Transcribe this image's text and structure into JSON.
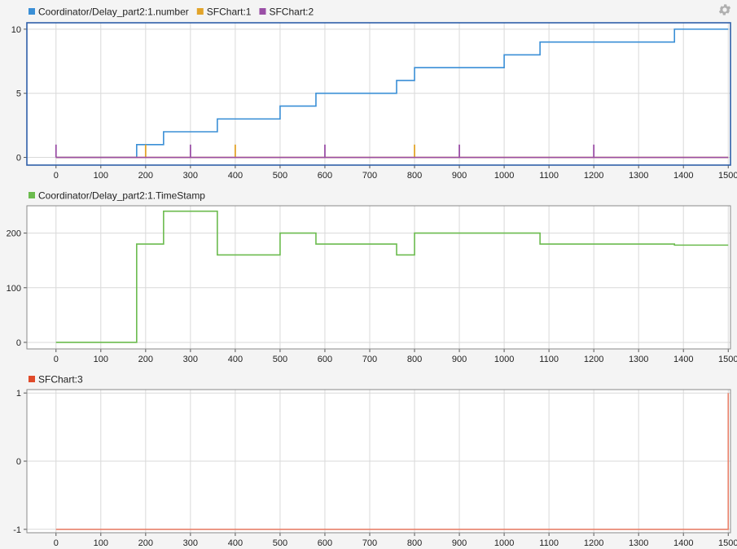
{
  "settings_icon": "gear-icon",
  "chart_data": [
    {
      "type": "line",
      "step": true,
      "xlim": [
        -65,
        1505
      ],
      "ylim": [
        -0.6,
        10.5
      ],
      "x_ticks": [
        0,
        100,
        200,
        300,
        400,
        500,
        600,
        700,
        800,
        900,
        1000,
        1100,
        1200,
        1300,
        1400,
        1500
      ],
      "y_ticks": [
        0,
        5,
        10
      ],
      "grid": true,
      "selected": true,
      "legend_placement": "top-left",
      "series": [
        {
          "name": "Coordinator/Delay_part2:1.number",
          "color": "#3a8fd6",
          "kind": "step",
          "x": [
            0,
            180,
            240,
            360,
            500,
            580,
            760,
            800,
            1000,
            1080,
            1380,
            1500
          ],
          "y": [
            0,
            1,
            2,
            3,
            4,
            5,
            6,
            7,
            8,
            9,
            10,
            10
          ]
        },
        {
          "name": "SFChart:1",
          "color": "#e2a42a",
          "kind": "impulse",
          "baseline": 0,
          "x": [
            200,
            400,
            800
          ],
          "y": [
            1,
            1,
            1
          ]
        },
        {
          "name": "SFChart:2",
          "color": "#9a4fa6",
          "kind": "impulse",
          "baseline": 0,
          "x": [
            0,
            300,
            600,
            900,
            1200
          ],
          "y": [
            1,
            1,
            1,
            1,
            1
          ]
        }
      ]
    },
    {
      "type": "line",
      "step": true,
      "xlim": [
        -65,
        1505
      ],
      "ylim": [
        -12,
        250
      ],
      "x_ticks": [
        0,
        100,
        200,
        300,
        400,
        500,
        600,
        700,
        800,
        900,
        1000,
        1100,
        1200,
        1300,
        1400,
        1500
      ],
      "y_ticks": [
        0,
        100,
        200
      ],
      "grid": true,
      "legend_placement": "top-left",
      "series": [
        {
          "name": "Coordinator/Delay_part2:1.TimeStamp",
          "color": "#6bbb4e",
          "kind": "step",
          "x": [
            0,
            180,
            240,
            360,
            500,
            580,
            760,
            800,
            1080,
            1380,
            1500
          ],
          "y": [
            0,
            180,
            240,
            160,
            200,
            180,
            160,
            200,
            180,
            178,
            178
          ]
        }
      ]
    },
    {
      "type": "line",
      "step": true,
      "xlim": [
        -65,
        1505
      ],
      "ylim": [
        -1.05,
        1.05
      ],
      "x_ticks": [
        0,
        100,
        200,
        300,
        400,
        500,
        600,
        700,
        800,
        900,
        1000,
        1100,
        1200,
        1300,
        1400,
        1500
      ],
      "y_ticks": [
        -1,
        0,
        1
      ],
      "grid": true,
      "legend_placement": "top-left",
      "series": [
        {
          "name": "SFChart:3",
          "color": "#e8806a",
          "legend_color": "#e04a2a",
          "kind": "step",
          "x": [
            0,
            1500,
            1500
          ],
          "y": [
            -1,
            -1,
            1
          ]
        }
      ]
    }
  ]
}
